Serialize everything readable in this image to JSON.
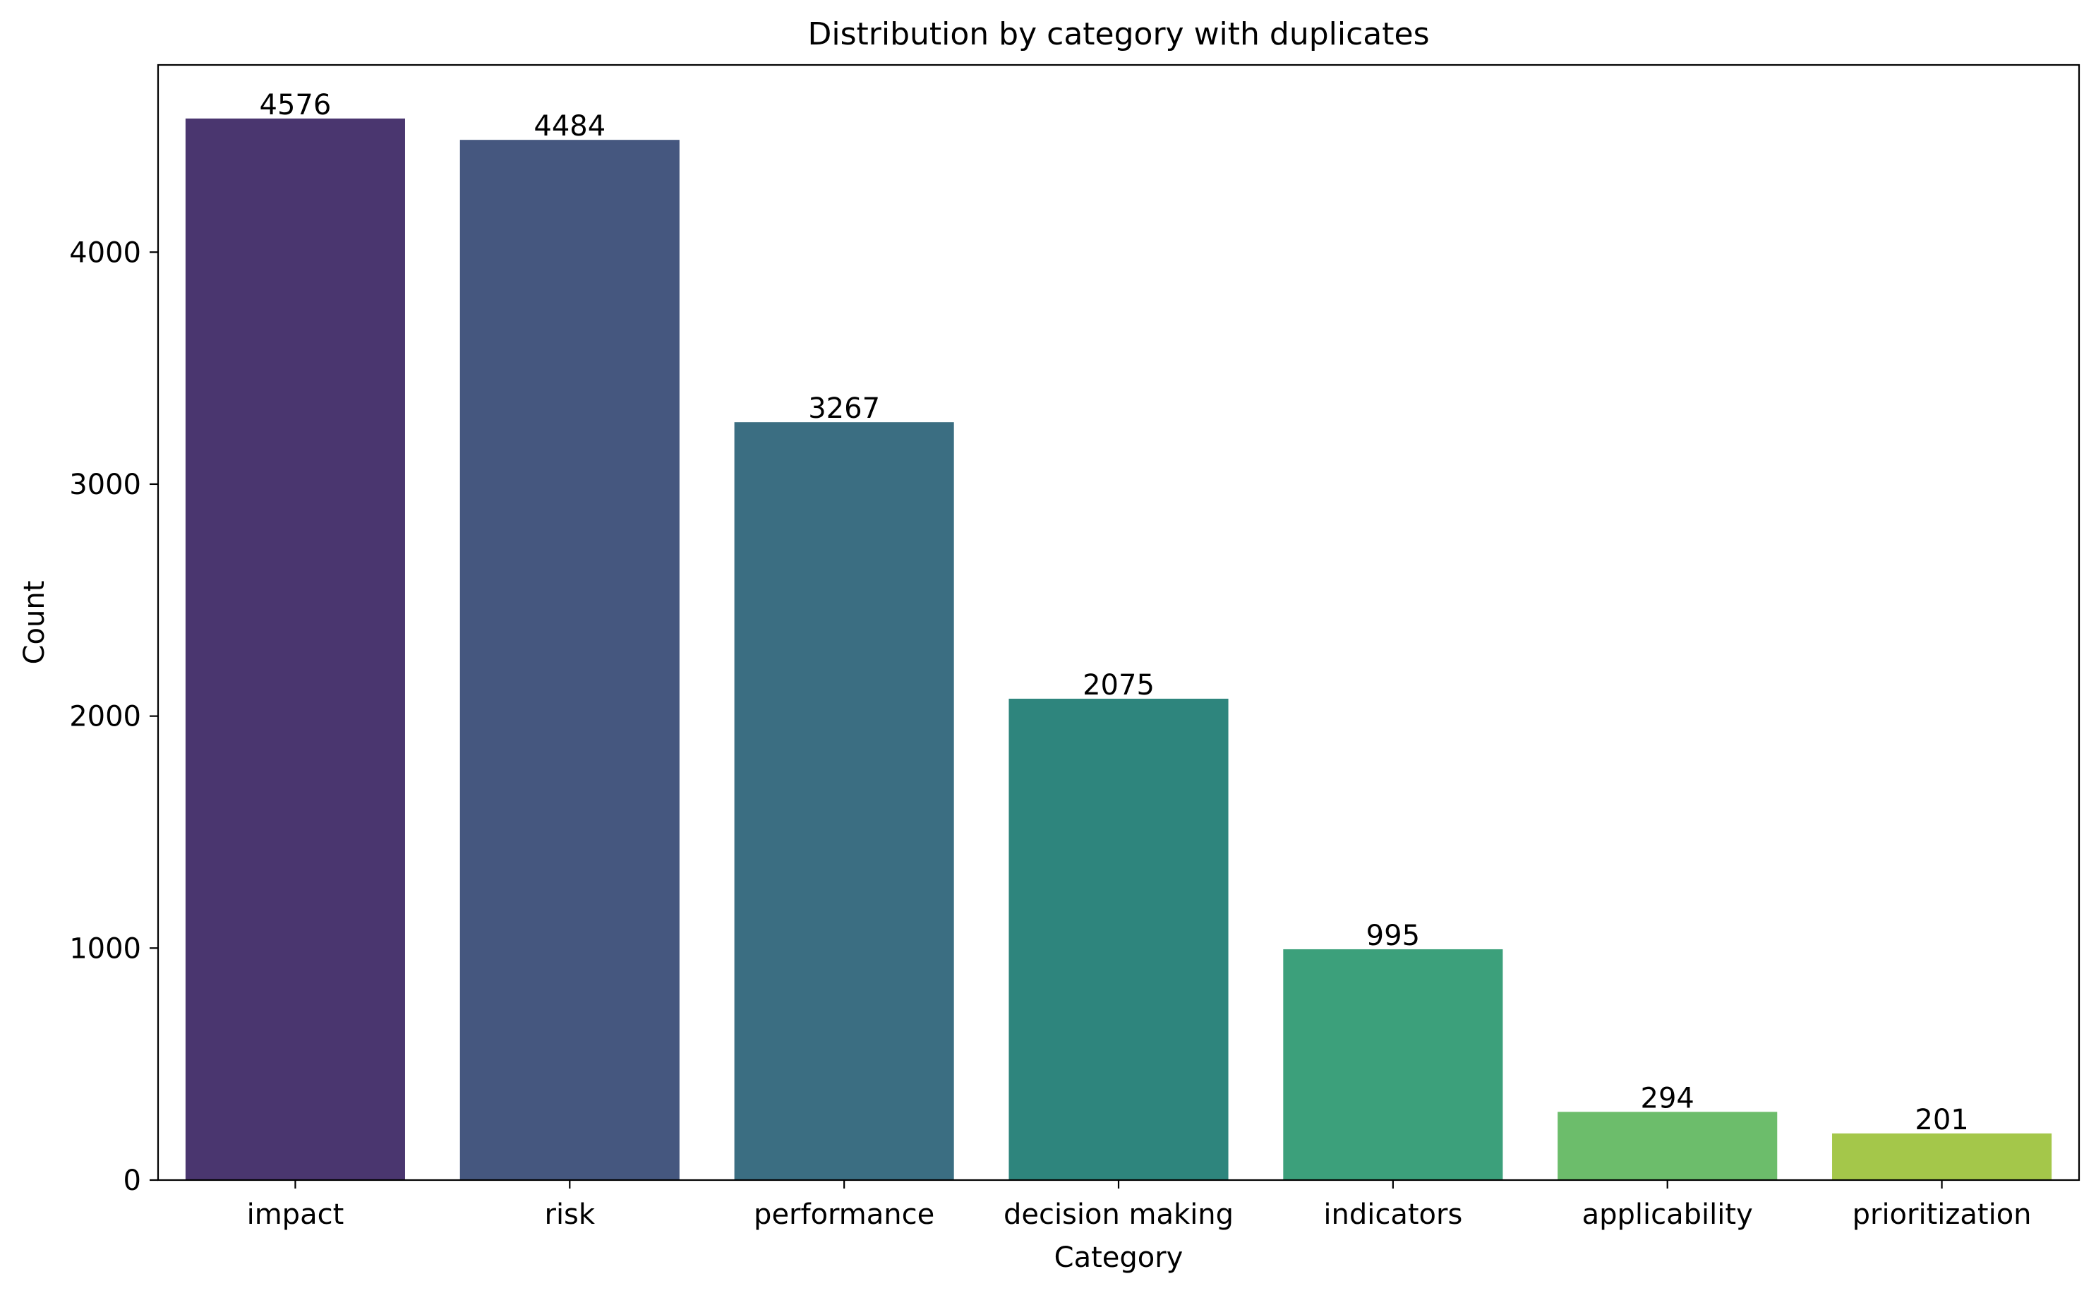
{
  "chart_data": {
    "type": "bar",
    "title": "Distribution by category with duplicates",
    "xlabel": "Category",
    "ylabel": "Count",
    "categories": [
      "impact",
      "risk",
      "performance",
      "decision making",
      "indicators",
      "applicability",
      "prioritization"
    ],
    "values": [
      4576,
      4484,
      3267,
      2075,
      995,
      294,
      201
    ],
    "data_labels": [
      "4576",
      "4484",
      "3267",
      "2075",
      "995",
      "294",
      "201"
    ],
    "colors": [
      "#4a366f",
      "#45577f",
      "#3b6e82",
      "#2e857d",
      "#3ca07b",
      "#6cbd6b",
      "#a4c74a"
    ],
    "ylim": [
      0,
      4807
    ],
    "yticks": [
      0,
      1000,
      2000,
      3000,
      4000
    ],
    "ytick_labels": [
      "0",
      "1000",
      "2000",
      "3000",
      "4000"
    ],
    "grid": false,
    "legend": "none"
  }
}
